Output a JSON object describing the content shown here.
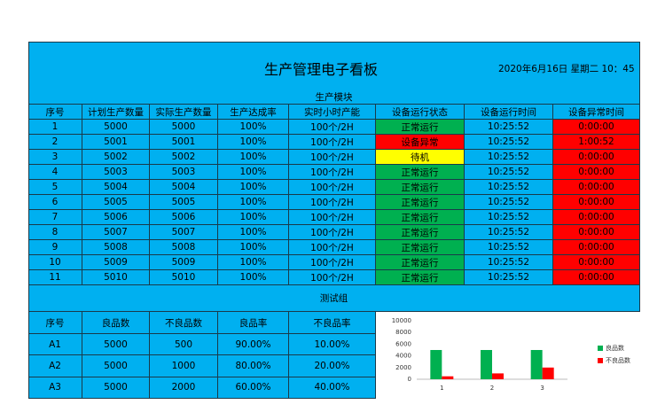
{
  "header": {
    "title": "生产管理电子看板",
    "date": "2020年6月16日 星期二 10：45"
  },
  "production": {
    "title": "生产模块",
    "headers": [
      "序号",
      "计划生产数量",
      "实际生产数量",
      "生产达成率",
      "实时小时产能",
      "设备运行状态",
      "设备运行时间",
      "设备异常时间"
    ],
    "status_colors": [
      "#00b050",
      "#ff0000",
      "#ffff00",
      "#00b050",
      "#00b050",
      "#00b050",
      "#00b050",
      "#00b050",
      "#00b050",
      "#00b050",
      "#00b050"
    ],
    "abnormal_time_color": "#ff0000",
    "rows": [
      [
        "1",
        "5000",
        "5000",
        "100%",
        "100个/2H",
        "正常运行",
        "10:25:52",
        "0:00:00"
      ],
      [
        "2",
        "5001",
        "5001",
        "100%",
        "100个/2H",
        "设备异常",
        "10:25:52",
        "1:00:52"
      ],
      [
        "3",
        "5002",
        "5002",
        "100%",
        "100个/2H",
        "待机",
        "10:25:52",
        "0:00:00"
      ],
      [
        "4",
        "5003",
        "5003",
        "100%",
        "100个/2H",
        "正常运行",
        "10:25:52",
        "0:00:00"
      ],
      [
        "5",
        "5004",
        "5004",
        "100%",
        "100个/2H",
        "正常运行",
        "10:25:52",
        "0:00:00"
      ],
      [
        "6",
        "5005",
        "5005",
        "100%",
        "100个/2H",
        "正常运行",
        "10:25:52",
        "0:00:00"
      ],
      [
        "7",
        "5006",
        "5006",
        "100%",
        "100个/2H",
        "正常运行",
        "10:25:52",
        "0:00:00"
      ],
      [
        "8",
        "5007",
        "5007",
        "100%",
        "100个/2H",
        "正常运行",
        "10:25:52",
        "0:00:00"
      ],
      [
        "9",
        "5008",
        "5008",
        "100%",
        "100个/2H",
        "正常运行",
        "10:25:52",
        "0:00:00"
      ],
      [
        "10",
        "5009",
        "5009",
        "100%",
        "100个/2H",
        "正常运行",
        "10:25:52",
        "0:00:00"
      ],
      [
        "11",
        "5010",
        "5010",
        "100%",
        "100个/2H",
        "正常运行",
        "10:25:52",
        "0:00:00"
      ]
    ]
  },
  "testing": {
    "title": "测试组",
    "headers": [
      "序号",
      "良品数",
      "不良品数",
      "良品率",
      "不良品率"
    ],
    "rows": [
      [
        "A1",
        "5000",
        "500",
        "90.00%",
        "10.00%"
      ],
      [
        "A2",
        "5000",
        "1000",
        "80.00%",
        "20.00%"
      ],
      [
        "A3",
        "5000",
        "2000",
        "60.00%",
        "40.00%"
      ]
    ]
  },
  "chart_data": {
    "type": "bar",
    "categories": [
      "1",
      "2",
      "3"
    ],
    "series": [
      {
        "name": "良品数",
        "color": "#00b050",
        "values": [
          5000,
          5000,
          5000
        ]
      },
      {
        "name": "不良品数",
        "color": "#ff0000",
        "values": [
          500,
          1000,
          2000
        ]
      }
    ],
    "ylim": [
      0,
      10000
    ],
    "yticks": [
      0,
      2000,
      4000,
      6000,
      8000,
      10000
    ],
    "legend": "right"
  }
}
